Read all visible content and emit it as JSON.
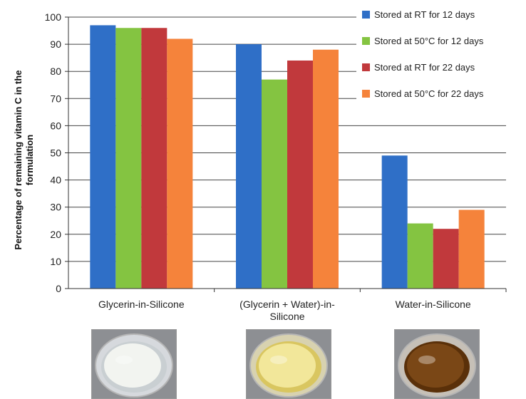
{
  "colors": {
    "series": [
      "#2f6fc7",
      "#84c441",
      "#c1393c",
      "#f5833b"
    ],
    "grid": "#444444",
    "axis": "#333333"
  },
  "chart_data": {
    "type": "bar",
    "categories": [
      [
        "Glycerin-in-Silicone"
      ],
      [
        "(Glycerin + Water)-in-",
        "Silicone"
      ],
      [
        "Water-in-Silicone"
      ]
    ],
    "series": [
      {
        "name": "Stored at RT for 12 days",
        "values": [
          97,
          90,
          49
        ]
      },
      {
        "name": "Stored at 50°C for 12 days",
        "values": [
          96,
          77,
          24
        ]
      },
      {
        "name": "Stored at RT for 22 days",
        "values": [
          96,
          84,
          22
        ]
      },
      {
        "name": "Stored at 50°C for 22 days",
        "values": [
          92,
          88,
          29
        ]
      }
    ],
    "ylabel": [
      "Percentage of remaining vitamin C in the",
      "formulation"
    ],
    "ylim": [
      0,
      100
    ],
    "yticks": [
      0,
      10,
      20,
      30,
      40,
      50,
      60,
      70,
      80,
      90,
      100
    ],
    "grid": true,
    "legend_position": "top-right"
  },
  "photos": [
    {
      "name": "glycerin-in-silicone-sample-photo",
      "dish": "#d6d9dd",
      "cream": "#f2f4f0",
      "shade": "#c9cfd2"
    },
    {
      "name": "glycerin-water-in-silicone-sample-photo",
      "dish": "#d8d2b0",
      "cream": "#f2e79a",
      "shade": "#d9c660"
    },
    {
      "name": "water-in-silicone-sample-photo",
      "dish": "#c6c0b7",
      "cream": "#7a4716",
      "shade": "#5a3009"
    }
  ]
}
